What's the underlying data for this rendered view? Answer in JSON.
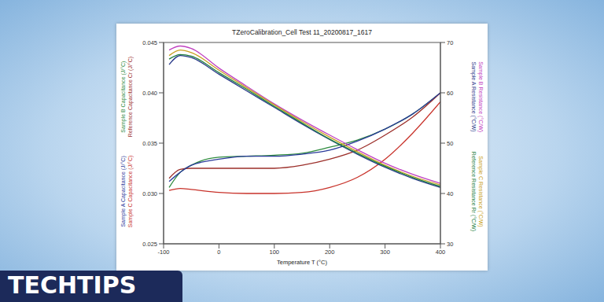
{
  "chart_data": {
    "type": "line",
    "title": "TZeroCalibration_Cell Test 11_20200817_1617",
    "x_label": "Temperature T (°C)",
    "xlim": [
      -100,
      400
    ],
    "xticks": [
      -100,
      0,
      100,
      200,
      300,
      400
    ],
    "ylim": [
      0.025,
      0.045
    ],
    "yticks": [
      0.025,
      {
        "value": 0.03,
        "label": "0.030"
      },
      0.035,
      {
        "value": 0.04,
        "label": "0.040"
      },
      0.045
    ],
    "y2lim": [
      30,
      70
    ],
    "y2ticks": [
      30,
      40,
      50,
      60,
      70
    ],
    "grid": false,
    "x": [
      -90,
      -70,
      -50,
      0,
      50,
      100,
      150,
      200,
      250,
      300,
      350,
      400
    ],
    "series": [
      {
        "name": "Sample B Capacitance (J/°C)",
        "color": "#2e8b3e",
        "values": [
          0.0306,
          0.0321,
          0.0328,
          0.0336,
          0.0337,
          0.0338,
          0.034,
          0.0346,
          0.0353,
          0.0364,
          0.0379,
          0.04
        ]
      },
      {
        "name": "Reference Capacitance Cr (J/°C)",
        "color": "#9c2f2a",
        "values": [
          0.0315,
          0.0324,
          0.0325,
          0.0325,
          0.0325,
          0.0325,
          0.0328,
          0.0334,
          0.0343,
          0.0358,
          0.0376,
          0.04
        ]
      },
      {
        "name": "Sample A Capacitance (J/°C)",
        "color": "#2a3a9a",
        "values": [
          0.0312,
          0.0321,
          0.0328,
          0.0334,
          0.0337,
          0.0337,
          0.0339,
          0.0343,
          0.0352,
          0.0364,
          0.0379,
          0.04
        ]
      },
      {
        "name": "Sample C Capacitance (J/°C)",
        "color": "#c8322a",
        "values": [
          0.0303,
          0.0305,
          0.0304,
          0.0301,
          0.03,
          0.03,
          0.0301,
          0.0306,
          0.0316,
          0.0334,
          0.036,
          0.0391
        ]
      },
      {
        "name": "Sample B Resistance (°C/W)",
        "color": "#c040c0",
        "axis": "y2",
        "values": [
          68.5,
          69.3,
          68.8,
          64.9,
          61.3,
          57.8,
          54.6,
          51.6,
          48.7,
          46.0,
          43.8,
          42.0
        ]
      },
      {
        "name": "Sample A Resistance (°C/W)",
        "color": "#2a3a8a",
        "axis": "y2",
        "values": [
          65.6,
          67.4,
          67.0,
          63.7,
          60.4,
          57.1,
          53.8,
          50.7,
          47.8,
          45.2,
          43.0,
          41.2
        ]
      },
      {
        "name": "Sample C Resistance (°C/W)",
        "color": "#c8a020",
        "axis": "y2",
        "values": [
          67.4,
          68.5,
          68.0,
          64.5,
          61.0,
          57.6,
          54.3,
          51.2,
          48.3,
          45.6,
          43.4,
          41.7
        ]
      },
      {
        "name": "Reference Resistance Rr (°C/W)",
        "color": "#208040",
        "axis": "y2",
        "values": [
          66.7,
          67.6,
          67.3,
          64.0,
          60.7,
          57.3,
          54.0,
          50.8,
          48.0,
          45.4,
          43.2,
          41.4
        ]
      }
    ],
    "annotations": [
      "TECHTIPS"
    ]
  }
}
